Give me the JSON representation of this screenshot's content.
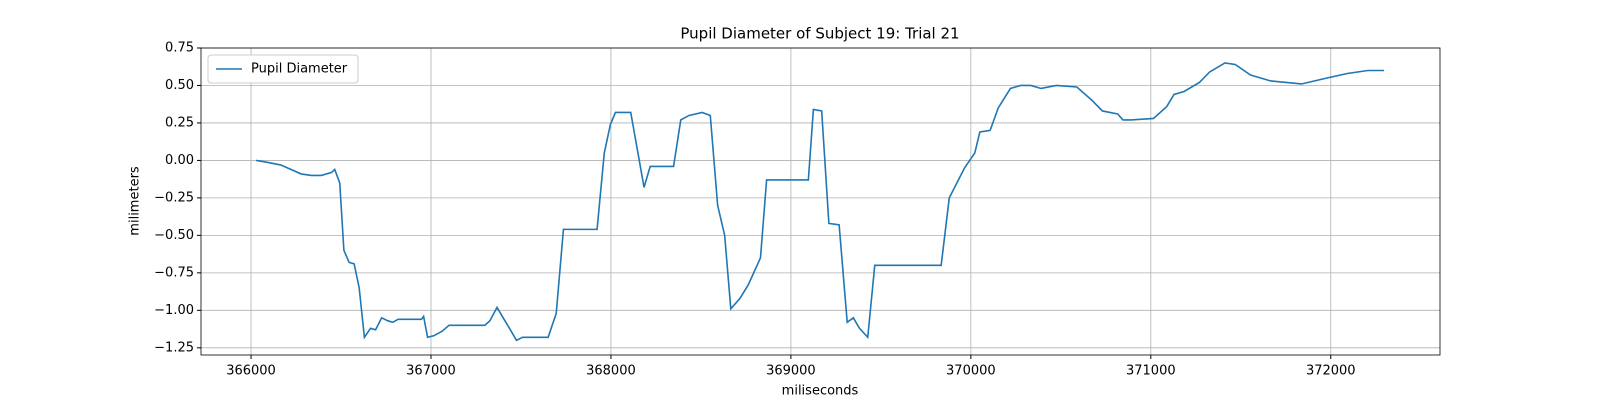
{
  "chart_data": {
    "type": "line",
    "title": "Pupil Diameter of Subject 19: Trial 21",
    "xlabel": "miliseconds",
    "ylabel": "milimeters",
    "x": [
      366028,
      366079,
      366164,
      366221,
      366278,
      366335,
      366391,
      366448,
      366465,
      366493,
      366516,
      366545,
      366573,
      366601,
      366630,
      366664,
      366692,
      366726,
      366760,
      366788,
      366817,
      366947,
      366959,
      366981,
      367015,
      367061,
      367100,
      367299,
      367327,
      367367,
      367401,
      367441,
      367475,
      367509,
      367651,
      367696,
      367736,
      367923,
      367963,
      367997,
      368025,
      368065,
      368110,
      368150,
      368184,
      368218,
      368348,
      368388,
      368434,
      368507,
      368552,
      368593,
      368632,
      368666,
      368717,
      368763,
      368831,
      368865,
      369097,
      369125,
      369171,
      369211,
      369268,
      369313,
      369347,
      369381,
      369427,
      369466,
      369835,
      369880,
      369965,
      370022,
      370050,
      370107,
      370152,
      370220,
      370277,
      370333,
      370390,
      370475,
      370589,
      370674,
      370731,
      370816,
      370845,
      370890,
      371015,
      371089,
      371129,
      371185,
      371270,
      371327,
      371412,
      371469,
      371554,
      371667,
      371837,
      371979,
      372092,
      372206,
      372296
    ],
    "series": [
      {
        "name": "Pupil Diameter",
        "color": "#1f77b4",
        "values": [
          0.0,
          -0.01,
          -0.03,
          -0.06,
          -0.09,
          -0.1,
          -0.1,
          -0.08,
          -0.06,
          -0.15,
          -0.6,
          -0.68,
          -0.69,
          -0.85,
          -1.18,
          -1.12,
          -1.13,
          -1.05,
          -1.07,
          -1.08,
          -1.06,
          -1.06,
          -1.04,
          -1.18,
          -1.17,
          -1.14,
          -1.1,
          -1.1,
          -1.07,
          -0.98,
          -1.05,
          -1.13,
          -1.2,
          -1.18,
          -1.18,
          -1.02,
          -0.46,
          -0.46,
          0.05,
          0.24,
          0.32,
          0.32,
          0.32,
          0.05,
          -0.18,
          -0.04,
          -0.04,
          0.27,
          0.3,
          0.32,
          0.3,
          -0.3,
          -0.5,
          -0.99,
          -0.92,
          -0.83,
          -0.65,
          -0.13,
          -0.13,
          0.34,
          0.33,
          -0.42,
          -0.43,
          -1.08,
          -1.05,
          -1.12,
          -1.18,
          -0.7,
          -0.7,
          -0.25,
          -0.05,
          0.05,
          0.19,
          0.2,
          0.35,
          0.48,
          0.5,
          0.5,
          0.48,
          0.5,
          0.49,
          0.4,
          0.33,
          0.31,
          0.27,
          0.27,
          0.28,
          0.36,
          0.44,
          0.46,
          0.52,
          0.59,
          0.65,
          0.64,
          0.57,
          0.53,
          0.51,
          0.55,
          0.58,
          0.6,
          0.6
        ]
      }
    ],
    "xlim": [
      365722,
      372607
    ],
    "ylim": [
      -1.298,
      0.75
    ],
    "xticks": [
      366000,
      367000,
      368000,
      369000,
      370000,
      371000,
      372000
    ],
    "yticks": [
      {
        "value": -1.25,
        "label": "−1.25"
      },
      {
        "value": -1.0,
        "label": "−1.00"
      },
      {
        "value": -0.75,
        "label": "−0.75"
      },
      {
        "value": -0.5,
        "label": "−0.50"
      },
      {
        "value": -0.25,
        "label": "−0.25"
      },
      {
        "value": 0,
        "label": "0.00"
      },
      0.25,
      {
        "value": 0.5,
        "label": "0.50"
      },
      0.75
    ],
    "grid": true,
    "legend": "upper-left"
  }
}
